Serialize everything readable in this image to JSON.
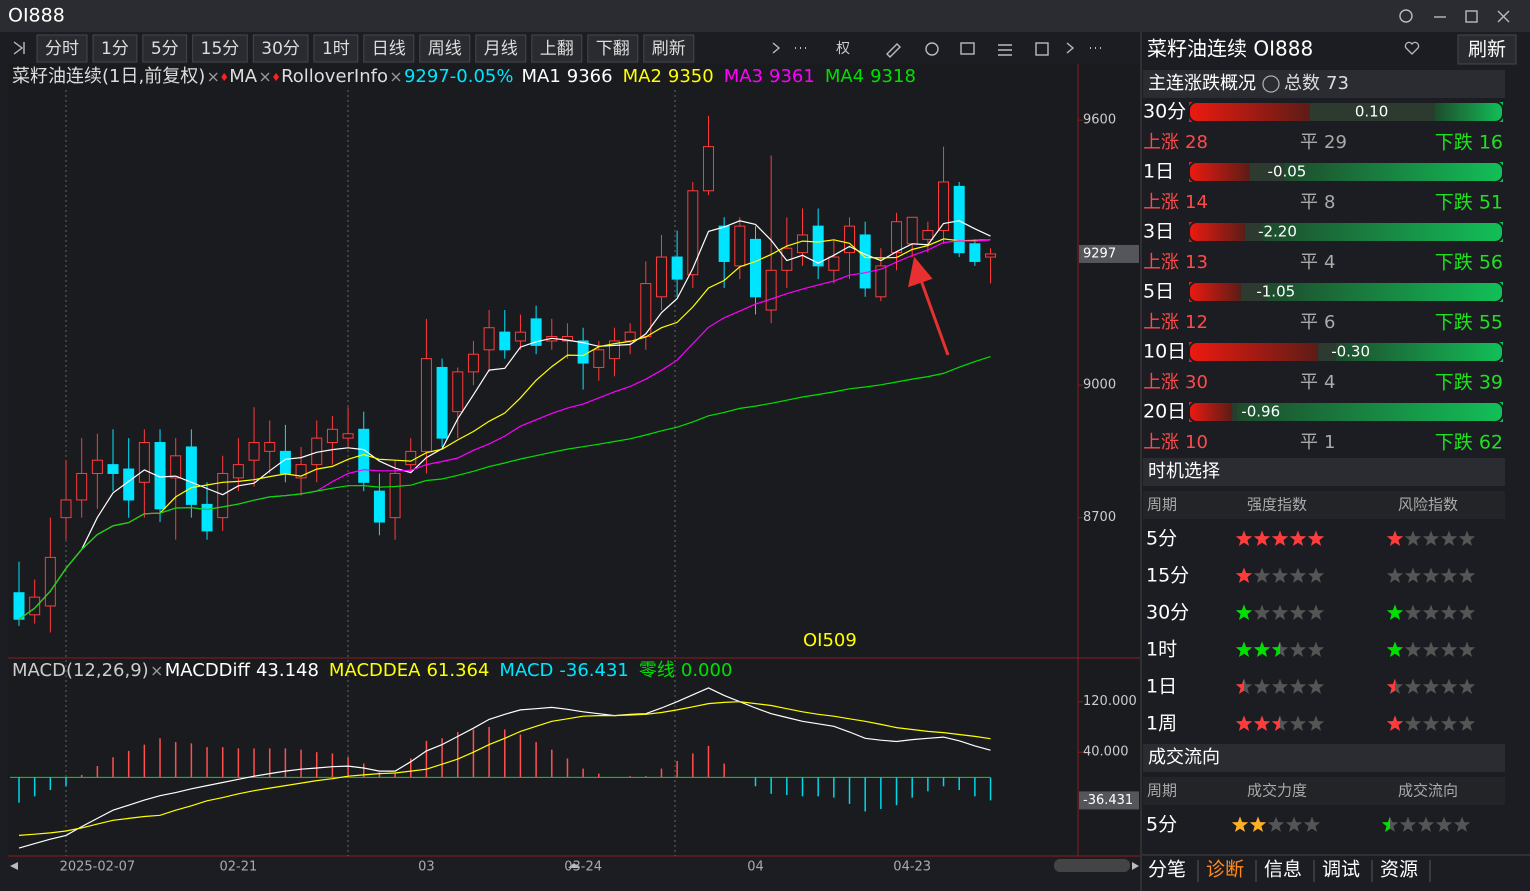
{
  "window": {
    "title": "OI888"
  },
  "toolbar": {
    "buttons": [
      "分时",
      "1分",
      "5分",
      "15分",
      "30分",
      "1时",
      "日线",
      "周线",
      "月线",
      "上翻",
      "下翻",
      "刷新"
    ],
    "rights": "权"
  },
  "chart_data": [
    {
      "type": "candlestick",
      "title": "菜籽油连续(1日,前复权)",
      "indicators": [
        "MA",
        "RolloverInfo"
      ],
      "quote": "9297-0.05%",
      "legend": [
        {
          "name": "MA1",
          "value": 9366,
          "color": "#ffffff"
        },
        {
          "name": "MA2",
          "value": 9350,
          "color": "#ffff00"
        },
        {
          "name": "MA3",
          "value": 9361,
          "color": "#ff00ff"
        },
        {
          "name": "MA4",
          "value": 9318,
          "color": "#00e000"
        }
      ],
      "categories": [
        null,
        null,
        null,
        null,
        null,
        "2025-02-07",
        null,
        null,
        null,
        null,
        null,
        null,
        null,
        null,
        "02-21",
        null,
        null,
        null,
        null,
        null,
        null,
        null,
        null,
        null,
        null,
        null,
        "03",
        null,
        null,
        null,
        null,
        null,
        null,
        null,
        null,
        null,
        "03-24",
        null,
        null,
        null,
        null,
        null,
        null,
        null,
        null,
        null,
        null,
        "04",
        null,
        null,
        null,
        null,
        null,
        null,
        null,
        null,
        null,
        "04-23",
        null,
        null,
        null,
        null,
        null
      ],
      "open": [
        8530,
        8480,
        8500,
        8700,
        8740,
        8800,
        8820,
        8810,
        8780,
        8870,
        8790,
        8860,
        8730,
        8700,
        8790,
        8830,
        8850,
        8850,
        8790,
        8820,
        8870,
        8880,
        8900,
        8760,
        8700,
        8820,
        8850,
        9040,
        8940,
        9030,
        9080,
        9120,
        9100,
        9150,
        9100,
        9100,
        9100,
        9040,
        9060,
        9100,
        9110,
        9200,
        9290,
        9250,
        9440,
        9360,
        9270,
        9330,
        9170,
        9260,
        9300,
        9360,
        9260,
        9300,
        9340,
        9200,
        9300,
        9320,
        9330,
        9350,
        9450,
        9320,
        9290
      ],
      "high": [
        8600,
        8560,
        8700,
        8830,
        8880,
        8890,
        8900,
        8880,
        8900,
        8900,
        8880,
        8900,
        8780,
        8840,
        8880,
        8950,
        8920,
        8910,
        8860,
        8920,
        8930,
        8950,
        8940,
        8800,
        8830,
        8880,
        9150,
        9060,
        9040,
        9100,
        9170,
        9170,
        9160,
        9180,
        9150,
        9140,
        9130,
        9100,
        9130,
        9140,
        9280,
        9340,
        9350,
        9460,
        9610,
        9380,
        9380,
        9360,
        9520,
        9380,
        9400,
        9400,
        9330,
        9380,
        9370,
        9310,
        9390,
        9380,
        9370,
        9540,
        9460,
        9330,
        9310
      ],
      "low": [
        8455,
        8460,
        8440,
        8650,
        8700,
        8720,
        8760,
        8700,
        8700,
        8690,
        8650,
        8700,
        8650,
        8670,
        8760,
        8770,
        8800,
        8780,
        8750,
        8780,
        8820,
        8860,
        8760,
        8660,
        8650,
        8800,
        8800,
        8860,
        8880,
        9000,
        9030,
        9060,
        9080,
        9070,
        9080,
        9060,
        8990,
        9010,
        9020,
        9070,
        9080,
        9170,
        9200,
        9220,
        9430,
        9220,
        9240,
        9160,
        9140,
        9220,
        9270,
        9240,
        9230,
        9240,
        9200,
        9190,
        9260,
        9290,
        9300,
        9320,
        9290,
        9270,
        9230
      ],
      "close": [
        8470,
        8520,
        8610,
        8740,
        8800,
        8830,
        8800,
        8740,
        8870,
        8720,
        8840,
        8730,
        8670,
        8800,
        8820,
        8870,
        8870,
        8800,
        8820,
        8880,
        8900,
        8890,
        8780,
        8690,
        8800,
        8850,
        9060,
        8880,
        9030,
        9070,
        9130,
        9080,
        9120,
        9090,
        9110,
        9110,
        9050,
        9080,
        9100,
        9120,
        9230,
        9290,
        9240,
        9440,
        9540,
        9280,
        9360,
        9200,
        9260,
        9310,
        9340,
        9270,
        9290,
        9360,
        9220,
        9270,
        9370,
        9380,
        9350,
        9460,
        9300,
        9280,
        9297
      ],
      "up_color": "#ff3b3b",
      "down_color": "#00e5ff",
      "ylim": [
        8389,
        9718
      ],
      "yticks": [
        8700,
        9000,
        9600
      ],
      "last_price": 9297,
      "annotation": "OI509"
    },
    {
      "type": "macd",
      "title": "MACD(12,26,9)",
      "series": [
        {
          "name": "MACDDiff",
          "color": "#ffffff",
          "values": [
            -112,
            -105,
            -98,
            -92,
            -78,
            -65,
            -52,
            -44,
            -36,
            -29,
            -24,
            -18,
            -13,
            -8,
            -3,
            2,
            6,
            10,
            13,
            15,
            17,
            18,
            15,
            10,
            10,
            25,
            42,
            52,
            65,
            78,
            92,
            100,
            107,
            109,
            111,
            108,
            104,
            101,
            98,
            100,
            101,
            110,
            120,
            131,
            142,
            130,
            120,
            110,
            101,
            95,
            89,
            85,
            81,
            72,
            62,
            59,
            57,
            60,
            62,
            64,
            58,
            50,
            43.148
          ]
        },
        {
          "name": "MACDDEA",
          "color": "#ffff00",
          "values": [
            -92,
            -90,
            -88,
            -85,
            -80,
            -74,
            -68,
            -65,
            -62,
            -60,
            -52,
            -45,
            -37,
            -32,
            -26,
            -21,
            -17,
            -13,
            -9,
            -5,
            -2,
            2,
            4,
            6,
            7,
            10,
            13,
            21,
            29,
            40,
            52,
            62,
            73,
            81,
            89,
            93,
            97,
            98,
            98,
            99,
            100,
            103,
            107,
            112,
            117,
            119,
            120,
            117,
            114,
            109,
            104,
            100,
            97,
            93,
            89,
            84,
            79,
            76,
            73,
            71,
            68,
            65,
            61.364
          ]
        }
      ],
      "legend": [
        {
          "name": "MACDDiff",
          "value": 43.148,
          "color": "#ffffff"
        },
        {
          "name": "MACDDEA",
          "value": 61.364,
          "color": "#ffff00"
        },
        {
          "name": "MACD",
          "value": -36.431,
          "color": "#00e5ff"
        },
        {
          "name": "零线",
          "value": 0,
          "value_label": "0.000",
          "color": "#00e000"
        }
      ],
      "hist_up_color": "#ff5050",
      "hist_down_color": "#00d8e8",
      "ylim": [
        -123,
        183
      ],
      "yticks": [
        {
          "value": 40,
          "label": "40.000"
        },
        {
          "value": 120,
          "label": "120.000"
        }
      ]
    }
  ],
  "quote_panel": {
    "title": "菜籽油连续 OI888",
    "refresh": "刷新",
    "overview": {
      "title": "主连涨跌概况",
      "total_label": "总数",
      "total": 73,
      "up_label": "上涨",
      "flat_label": "平",
      "down_label": "下跌",
      "rows": [
        {
          "period": "30分",
          "value": 0.1,
          "value_label": "0.10",
          "up": 28,
          "flat": 29,
          "down": 16
        },
        {
          "period": "1日",
          "value": -0.05,
          "up": 14,
          "flat": 8,
          "down": 51
        },
        {
          "period": "3日",
          "value": -2.2,
          "value_label": "-2.20",
          "up": 13,
          "flat": 4,
          "down": 56
        },
        {
          "period": "5日",
          "value": -1.05,
          "up": 12,
          "flat": 6,
          "down": 55
        },
        {
          "period": "10日",
          "value": -0.3,
          "value_label": "-0.30",
          "up": 30,
          "flat": 4,
          "down": 39
        },
        {
          "period": "20日",
          "value": -0.96,
          "up": 10,
          "flat": 1,
          "down": 62
        }
      ]
    },
    "timing": {
      "title": "时机选择",
      "headers": [
        "周期",
        "强度指数",
        "风险指数"
      ],
      "rows": [
        {
          "period": "5分",
          "strength": 5,
          "risk": 1,
          "strength_color": "#ff3b3b",
          "risk_color": "#ff3b3b"
        },
        {
          "period": "15分",
          "strength": 1,
          "risk": 0,
          "strength_color": "#ff3b3b",
          "risk_color": "#ff3b3b"
        },
        {
          "period": "30分",
          "strength": 1,
          "risk": 1,
          "strength_color": "#00e000",
          "risk_color": "#00e000"
        },
        {
          "period": "1时",
          "strength": 2.5,
          "risk": 1,
          "strength_color": "#00e000",
          "risk_color": "#00e000"
        },
        {
          "period": "1日",
          "strength": 0.5,
          "risk": 0.5,
          "strength_color": "#ff3b3b",
          "risk_color": "#ff3b3b"
        },
        {
          "period": "1周",
          "strength": 2.5,
          "risk": 1,
          "strength_color": "#ff3b3b",
          "risk_color": "#ff3b3b"
        }
      ]
    },
    "flow": {
      "title": "成交流向",
      "headers": [
        "周期",
        "成交力度",
        "成交流向"
      ],
      "rows": [
        {
          "period": "5分",
          "strength": 2,
          "flow": 0.5,
          "strength_color": "#ffb020",
          "flow_color": "#00e000"
        }
      ]
    },
    "tabs": [
      "分笔",
      "诊断",
      "信息",
      "调试",
      "资源"
    ],
    "active_tab": "诊断"
  }
}
